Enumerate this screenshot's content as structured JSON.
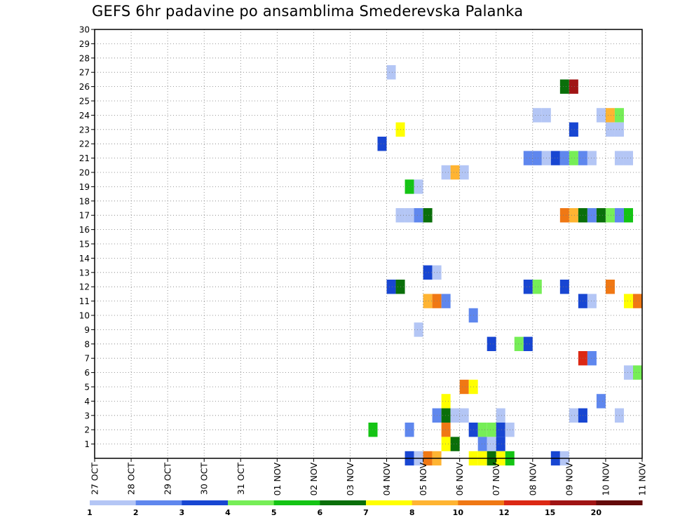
{
  "chart_data": {
    "type": "heatmap",
    "title": "GEFS 6hr padavine po ansamblima Smederevska Palanka",
    "xlabel": "",
    "ylabel": "",
    "y_ticks": [
      1,
      2,
      3,
      4,
      5,
      6,
      7,
      8,
      9,
      10,
      11,
      12,
      13,
      14,
      15,
      16,
      17,
      18,
      19,
      20,
      21,
      22,
      23,
      24,
      25,
      26,
      27,
      28,
      29,
      30
    ],
    "ylim": [
      0,
      30
    ],
    "x_tick_labels": [
      "27 OCT",
      "28 OCT",
      "29 OCT",
      "30 OCT",
      "31 OCT",
      "01 NOV",
      "02 NOV",
      "03 NOV",
      "04 NOV",
      "05 NOV",
      "06 NOV",
      "07 NOV",
      "08 NOV",
      "09 NOV",
      "10 NOV",
      "11 NOV"
    ],
    "x_range_steps": [
      0,
      60
    ],
    "x_step": "6hr",
    "grid": true,
    "legend": {
      "placement": "bottom",
      "colors": [
        "#b4c6f5",
        "#5f87ee",
        "#1846d2",
        "#76ee57",
        "#14c414",
        "#0a6f0a",
        "#ffff00",
        "#ffb432",
        "#f07814",
        "#dc2814",
        "#a01414",
        "#640a0a"
      ],
      "labels": [
        "1",
        "2",
        "3",
        "4",
        "5",
        "6",
        "7",
        "8",
        "10",
        "12",
        "15",
        "20"
      ]
    },
    "cells": [
      {
        "member": 27,
        "step": 33,
        "color": "#b4c6f5"
      },
      {
        "member": 26,
        "step": 52,
        "color": "#0a6f0a"
      },
      {
        "member": 26,
        "step": 53,
        "color": "#a01414"
      },
      {
        "member": 24,
        "step": 49,
        "color": "#b4c6f5"
      },
      {
        "member": 24,
        "step": 50,
        "color": "#b4c6f5"
      },
      {
        "member": 24,
        "step": 56,
        "color": "#b4c6f5"
      },
      {
        "member": 24,
        "step": 57,
        "color": "#ffb432"
      },
      {
        "member": 24,
        "step": 58,
        "color": "#76ee57"
      },
      {
        "member": 23,
        "step": 34,
        "color": "#ffff00"
      },
      {
        "member": 23,
        "step": 53,
        "color": "#1846d2"
      },
      {
        "member": 23,
        "step": 57,
        "color": "#b4c6f5"
      },
      {
        "member": 23,
        "step": 58,
        "color": "#b4c6f5"
      },
      {
        "member": 22,
        "step": 32,
        "color": "#1846d2"
      },
      {
        "member": 21,
        "step": 48,
        "color": "#5f87ee"
      },
      {
        "member": 21,
        "step": 49,
        "color": "#5f87ee"
      },
      {
        "member": 21,
        "step": 50,
        "color": "#b4c6f5"
      },
      {
        "member": 21,
        "step": 51,
        "color": "#1846d2"
      },
      {
        "member": 21,
        "step": 52,
        "color": "#5f87ee"
      },
      {
        "member": 21,
        "step": 53,
        "color": "#76ee57"
      },
      {
        "member": 21,
        "step": 54,
        "color": "#5f87ee"
      },
      {
        "member": 21,
        "step": 55,
        "color": "#b4c6f5"
      },
      {
        "member": 21,
        "step": 58,
        "color": "#b4c6f5"
      },
      {
        "member": 21,
        "step": 59,
        "color": "#b4c6f5"
      },
      {
        "member": 20,
        "step": 39,
        "color": "#b4c6f5"
      },
      {
        "member": 20,
        "step": 40,
        "color": "#ffb432"
      },
      {
        "member": 20,
        "step": 41,
        "color": "#b4c6f5"
      },
      {
        "member": 19,
        "step": 35,
        "color": "#14c414"
      },
      {
        "member": 19,
        "step": 36,
        "color": "#b4c6f5"
      },
      {
        "member": 17,
        "step": 34,
        "color": "#b4c6f5"
      },
      {
        "member": 17,
        "step": 35,
        "color": "#b4c6f5"
      },
      {
        "member": 17,
        "step": 36,
        "color": "#5f87ee"
      },
      {
        "member": 17,
        "step": 37,
        "color": "#0a6f0a"
      },
      {
        "member": 17,
        "step": 52,
        "color": "#f07814"
      },
      {
        "member": 17,
        "step": 53,
        "color": "#ffb432"
      },
      {
        "member": 17,
        "step": 54,
        "color": "#0a6f0a"
      },
      {
        "member": 17,
        "step": 55,
        "color": "#5f87ee"
      },
      {
        "member": 17,
        "step": 56,
        "color": "#0a6f0a"
      },
      {
        "member": 17,
        "step": 57,
        "color": "#76ee57"
      },
      {
        "member": 17,
        "step": 58,
        "color": "#5f87ee"
      },
      {
        "member": 17,
        "step": 59,
        "color": "#14c414"
      },
      {
        "member": 13,
        "step": 37,
        "color": "#1846d2"
      },
      {
        "member": 13,
        "step": 38,
        "color": "#b4c6f5"
      },
      {
        "member": 12,
        "step": 33,
        "color": "#1846d2"
      },
      {
        "member": 12,
        "step": 34,
        "color": "#0a6f0a"
      },
      {
        "member": 12,
        "step": 48,
        "color": "#1846d2"
      },
      {
        "member": 12,
        "step": 49,
        "color": "#76ee57"
      },
      {
        "member": 12,
        "step": 52,
        "color": "#1846d2"
      },
      {
        "member": 12,
        "step": 57,
        "color": "#f07814"
      },
      {
        "member": 11,
        "step": 37,
        "color": "#ffb432"
      },
      {
        "member": 11,
        "step": 38,
        "color": "#f07814"
      },
      {
        "member": 11,
        "step": 39,
        "color": "#5f87ee"
      },
      {
        "member": 11,
        "step": 54,
        "color": "#1846d2"
      },
      {
        "member": 11,
        "step": 55,
        "color": "#b4c6f5"
      },
      {
        "member": 11,
        "step": 59,
        "color": "#ffff00"
      },
      {
        "member": 11,
        "step": 60,
        "color": "#f07814"
      },
      {
        "member": 10,
        "step": 42,
        "color": "#5f87ee"
      },
      {
        "member": 9,
        "step": 36,
        "color": "#b4c6f5"
      },
      {
        "member": 8,
        "step": 44,
        "color": "#1846d2"
      },
      {
        "member": 8,
        "step": 47,
        "color": "#76ee57"
      },
      {
        "member": 8,
        "step": 48,
        "color": "#1846d2"
      },
      {
        "member": 7,
        "step": 54,
        "color": "#dc2814"
      },
      {
        "member": 7,
        "step": 55,
        "color": "#5f87ee"
      },
      {
        "member": 6,
        "step": 59,
        "color": "#b4c6f5"
      },
      {
        "member": 6,
        "step": 60,
        "color": "#76ee57"
      },
      {
        "member": 5,
        "step": 41,
        "color": "#f07814"
      },
      {
        "member": 5,
        "step": 42,
        "color": "#ffff00"
      },
      {
        "member": 4,
        "step": 39,
        "color": "#ffff00"
      },
      {
        "member": 4,
        "step": 56,
        "color": "#5f87ee"
      },
      {
        "member": 3,
        "step": 38,
        "color": "#5f87ee"
      },
      {
        "member": 3,
        "step": 39,
        "color": "#0a6f0a"
      },
      {
        "member": 3,
        "step": 40,
        "color": "#b4c6f5"
      },
      {
        "member": 3,
        "step": 41,
        "color": "#b4c6f5"
      },
      {
        "member": 3,
        "step": 45,
        "color": "#b4c6f5"
      },
      {
        "member": 3,
        "step": 53,
        "color": "#b4c6f5"
      },
      {
        "member": 3,
        "step": 54,
        "color": "#1846d2"
      },
      {
        "member": 3,
        "step": 58,
        "color": "#b4c6f5"
      },
      {
        "member": 2,
        "step": 31,
        "color": "#14c414"
      },
      {
        "member": 2,
        "step": 35,
        "color": "#5f87ee"
      },
      {
        "member": 2,
        "step": 39,
        "color": "#f07814"
      },
      {
        "member": 2,
        "step": 42,
        "color": "#1846d2"
      },
      {
        "member": 2,
        "step": 43,
        "color": "#76ee57"
      },
      {
        "member": 2,
        "step": 44,
        "color": "#76ee57"
      },
      {
        "member": 2,
        "step": 45,
        "color": "#1846d2"
      },
      {
        "member": 2,
        "step": 46,
        "color": "#b4c6f5"
      },
      {
        "member": 1,
        "step": 39,
        "color": "#ffff00"
      },
      {
        "member": 1,
        "step": 40,
        "color": "#0a6f0a"
      },
      {
        "member": 1,
        "step": 43,
        "color": "#5f87ee"
      },
      {
        "member": 1,
        "step": 44,
        "color": "#b4c6f5"
      },
      {
        "member": 1,
        "step": 45,
        "color": "#1846d2"
      },
      {
        "member": 0,
        "step": 35,
        "color": "#1846d2"
      },
      {
        "member": 0,
        "step": 36,
        "color": "#b4c6f5"
      },
      {
        "member": 0,
        "step": 37,
        "color": "#f07814"
      },
      {
        "member": 0,
        "step": 38,
        "color": "#ffb432"
      },
      {
        "member": 0,
        "step": 42,
        "color": "#ffff00"
      },
      {
        "member": 0,
        "step": 43,
        "color": "#ffff00"
      },
      {
        "member": 0,
        "step": 44,
        "color": "#0a6f0a"
      },
      {
        "member": 0,
        "step": 45,
        "color": "#ffff00"
      },
      {
        "member": 0,
        "step": 46,
        "color": "#14c414"
      },
      {
        "member": 0,
        "step": 51,
        "color": "#1846d2"
      },
      {
        "member": 0,
        "step": 52,
        "color": "#b4c6f5"
      }
    ]
  }
}
